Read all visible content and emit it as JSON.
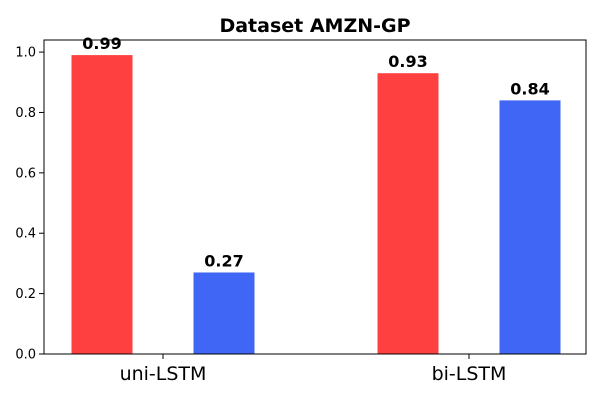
{
  "chart_data": {
    "type": "bar",
    "title": "Dataset AMZN-GP",
    "xlabel": "",
    "ylabel": "",
    "categories": [
      "uni-LSTM",
      "bi-LSTM"
    ],
    "series": [
      {
        "values": [
          0.99,
          0.93
        ],
        "color": "#ff4040"
      },
      {
        "values": [
          0.27,
          0.84
        ],
        "color": "#4066f5"
      }
    ],
    "data_labels": [
      [
        "0.99",
        "0.93"
      ],
      [
        "0.27",
        "0.84"
      ]
    ],
    "ylim": [
      0,
      1.04
    ],
    "yticks": [
      0.0,
      0.2,
      0.4,
      0.6,
      0.8,
      1.0
    ],
    "ytick_labels": [
      "0.0",
      "0.2",
      "0.4",
      "0.6",
      "0.8",
      "1.0"
    ],
    "grid": false,
    "legend": "none"
  }
}
